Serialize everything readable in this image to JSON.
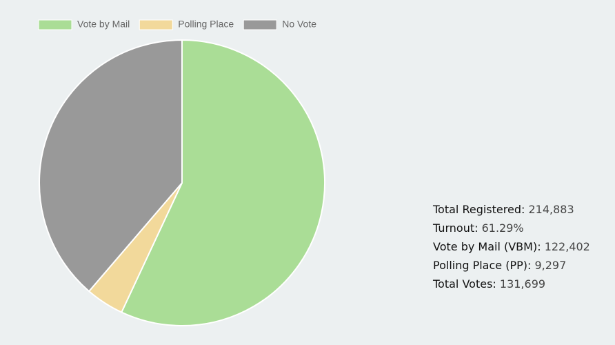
{
  "chart_data": {
    "type": "pie",
    "categories": [
      "Vote by Mail",
      "Polling Place",
      "No Vote"
    ],
    "values": [
      122402,
      9297,
      83184
    ],
    "colors": [
      "#aadd96",
      "#f2d99b",
      "#999999"
    ],
    "legend": "top"
  },
  "stats": [
    {
      "label": "Total Registered:",
      "value": "214,883"
    },
    {
      "label": "Turnout:",
      "value": "61.29%"
    },
    {
      "label": "Vote by Mail (VBM):",
      "value": "122,402"
    },
    {
      "label": "Polling Place (PP):",
      "value": "9,297"
    },
    {
      "label": "Total Votes:",
      "value": "131,699"
    }
  ]
}
